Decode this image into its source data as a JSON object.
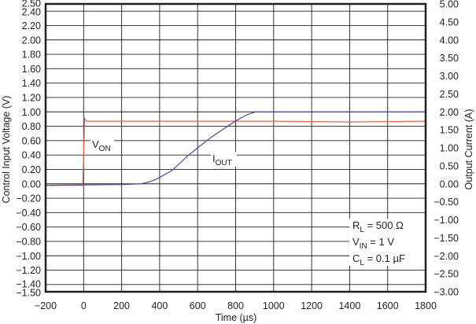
{
  "chart_data": {
    "type": "line",
    "title": "",
    "xlabel": "Time (µs)",
    "ylabel": "Control Input Voltage (V)",
    "ylabel_right": "Output Current (A)",
    "xlim": [
      -200,
      1800
    ],
    "ylim": [
      -1.5,
      2.5
    ],
    "ylim_right": [
      -3.0,
      5.0
    ],
    "grid": true,
    "x_ticks": [
      "−200",
      "0",
      "200",
      "400",
      "600",
      "800",
      "1000",
      "1200",
      "1400",
      "1600",
      "1800"
    ],
    "y_ticks_left": [
      "2.50",
      "2.40",
      "2.20",
      "2.00",
      "1.80",
      "1.60",
      "1.40",
      "1.20",
      "1.00",
      "0.80",
      "0.60",
      "0.40",
      "0.20",
      "0.00",
      "−0.20",
      "−0.40",
      "−0.60",
      "−0.80",
      "−1.00",
      "−1.20",
      "−1.40",
      "−1.50"
    ],
    "y_ticks_right": [
      "5.00",
      "4.50",
      "4.00",
      "3.50",
      "3.00",
      "2.50",
      "2.00",
      "1.50",
      "1.00",
      "0.50",
      "0.00",
      "−0.50",
      "−1.00",
      "−1.50",
      "−2.00",
      "−2.50",
      "−3.00"
    ],
    "series": [
      {
        "name": "VON",
        "label_main": "V",
        "label_sub": "ON",
        "axis": "left",
        "color": "#e8604c",
        "x": [
          -200,
          -5,
          0,
          5,
          15,
          200,
          600,
          1000,
          1400,
          1800
        ],
        "values": [
          -0.02,
          -0.02,
          0.4,
          0.91,
          0.87,
          0.87,
          0.87,
          0.87,
          0.86,
          0.87
        ]
      },
      {
        "name": "IOUT",
        "label_main": "I",
        "label_sub": "OUT",
        "axis": "right",
        "color": "#4a4a9a",
        "x": [
          -200,
          0,
          200,
          300,
          350,
          390,
          465,
          555,
          670,
          800,
          860,
          905,
          1000,
          1400,
          1800
        ],
        "values": [
          -0.04,
          -0.03,
          -0.02,
          0.0,
          0.06,
          0.15,
          0.37,
          0.81,
          1.29,
          1.75,
          1.92,
          2.0,
          2.0,
          2.0,
          2.0
        ]
      }
    ],
    "annotations": [
      {
        "main": "R",
        "sub": "L",
        "rest": " = 500 Ω"
      },
      {
        "main": "V",
        "sub": "IN",
        "rest": " = 1 V"
      },
      {
        "main": "C",
        "sub": "L",
        "rest": " = 0.1 µF"
      }
    ]
  }
}
